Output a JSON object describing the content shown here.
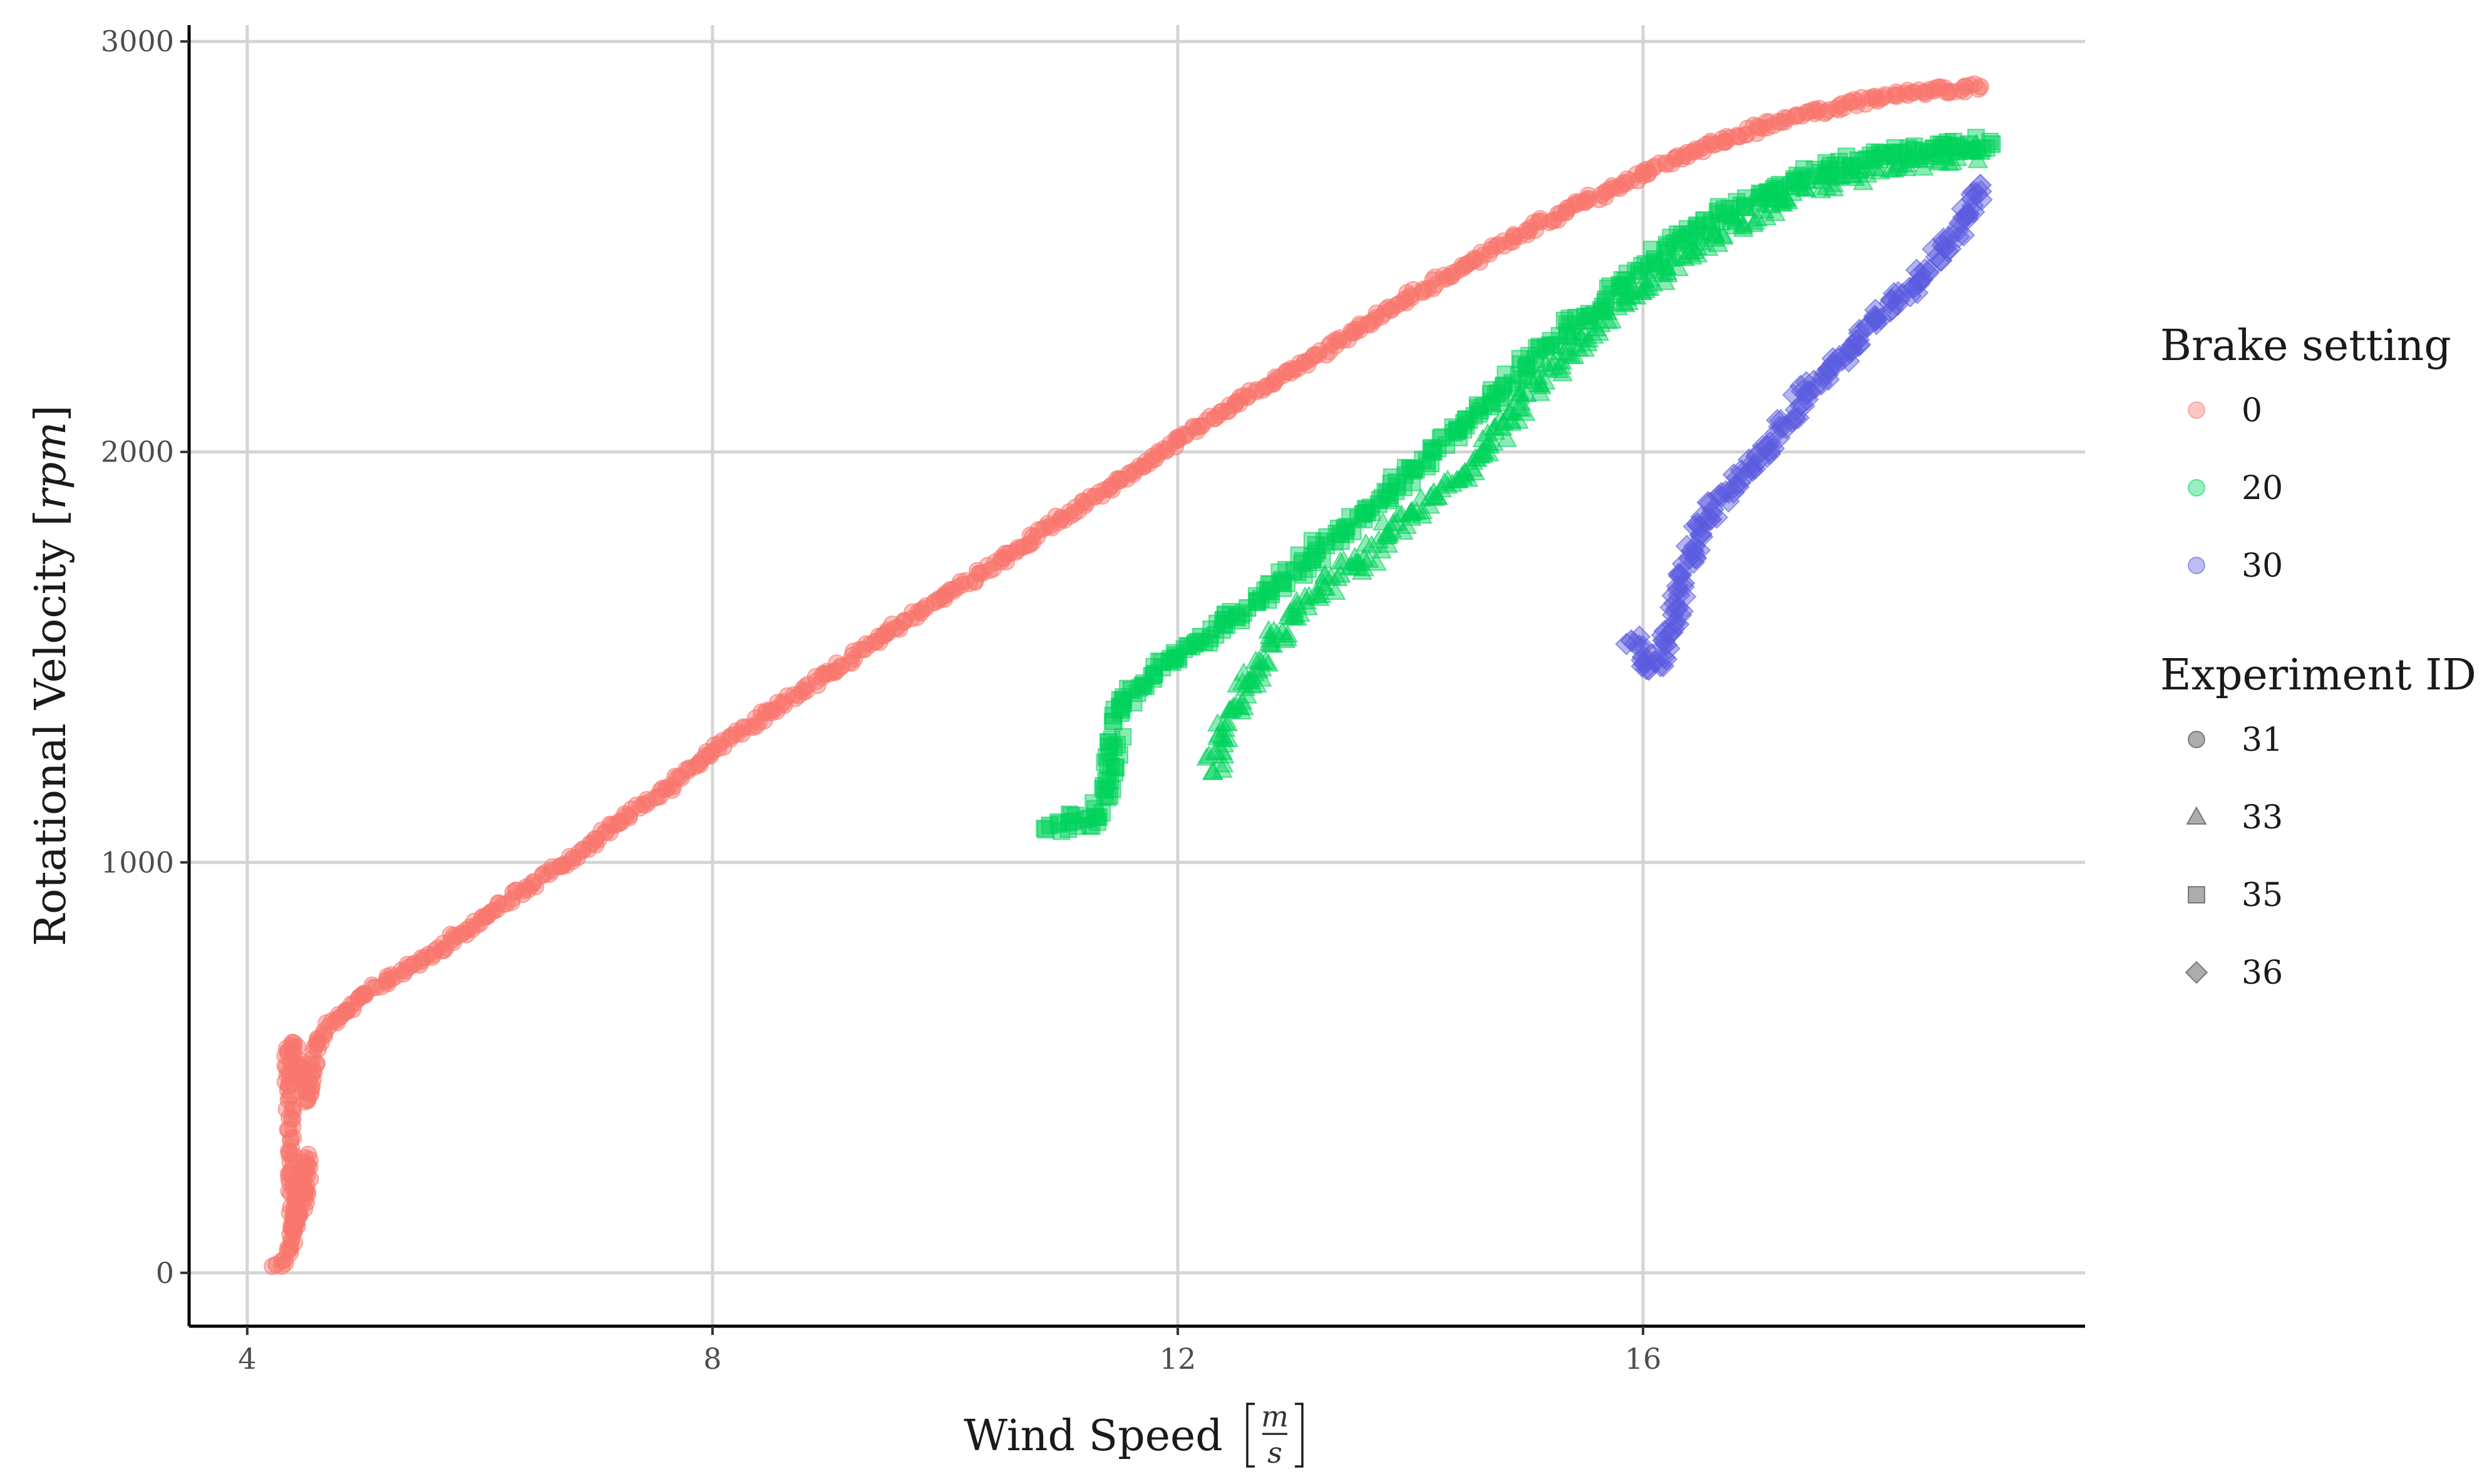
{
  "chart_data": {
    "type": "scatter",
    "title": "",
    "xlabel": "Wind Speed",
    "xlabel_unit": {
      "numerator": "m",
      "denominator": "s"
    },
    "ylabel": "Rotational Velocity",
    "ylabel_unit": "rpm",
    "xlim": [
      3.5,
      19.8
    ],
    "ylim": [
      -130,
      3040
    ],
    "x_ticks": [
      4,
      8,
      12,
      16
    ],
    "y_ticks": [
      0,
      1000,
      2000,
      3000
    ],
    "grid": true,
    "legend_position": "right",
    "colors": {
      "0": "#F8766D",
      "20": "#00D35C",
      "30": "#5B5BE0"
    },
    "legends": [
      {
        "title": "Brake setting",
        "kind": "color",
        "items": [
          "0",
          "20",
          "30"
        ]
      },
      {
        "title": "Experiment ID",
        "kind": "shape",
        "items": [
          "31",
          "33",
          "35",
          "36"
        ],
        "shapes": [
          "circle",
          "triangle",
          "square",
          "diamond"
        ]
      }
    ],
    "series": [
      {
        "brake": "0",
        "experiment": "31",
        "shape": "circle",
        "jitter": 12,
        "x": [
          4.25,
          4.3,
          4.35,
          4.4,
          4.42,
          4.45,
          4.48,
          4.5,
          4.52,
          4.5,
          4.45,
          4.4,
          4.35,
          4.4,
          4.45,
          4.5,
          4.52,
          4.55,
          4.6,
          4.7,
          4.85,
          5.0,
          5.2,
          5.5,
          5.8,
          6.1,
          6.4,
          6.8,
          7.2,
          7.6,
          8.0,
          8.5,
          9.0,
          9.5,
          10.0,
          10.5,
          11.0,
          11.5,
          12.0,
          12.5,
          13.0,
          13.5,
          14.0,
          14.5,
          15.0,
          15.5,
          16.0,
          16.5,
          17.0,
          17.5,
          18.0,
          18.5,
          18.9
        ],
        "y": [
          20,
          30,
          60,
          100,
          150,
          200,
          250,
          280,
          260,
          200,
          140,
          100,
          540,
          560,
          500,
          450,
          420,
          480,
          560,
          600,
          640,
          680,
          710,
          760,
          820,
          880,
          940,
          1010,
          1100,
          1180,
          1270,
          1370,
          1460,
          1560,
          1650,
          1740,
          1840,
          1930,
          2030,
          2120,
          2200,
          2290,
          2380,
          2460,
          2540,
          2610,
          2680,
          2740,
          2790,
          2830,
          2860,
          2880,
          2890
        ]
      },
      {
        "brake": "20",
        "experiment": "35",
        "shape": "square",
        "jitter": 26,
        "x": [
          10.9,
          11.1,
          11.3,
          11.4,
          11.45,
          11.5,
          11.6,
          11.8,
          12.0,
          12.2,
          12.4,
          12.6,
          12.8,
          13.0,
          13.2,
          13.4,
          13.6,
          13.8,
          14.0,
          14.2,
          14.4,
          14.6,
          14.8,
          15.0,
          15.2,
          15.5,
          15.8,
          16.1,
          16.4,
          16.7,
          17.0,
          17.3,
          17.6,
          17.9,
          18.2,
          18.5,
          18.8,
          19.0
        ],
        "y": [
          1090,
          1100,
          1110,
          1200,
          1280,
          1380,
          1420,
          1460,
          1500,
          1550,
          1580,
          1620,
          1660,
          1710,
          1760,
          1800,
          1850,
          1900,
          1960,
          2000,
          2050,
          2100,
          2160,
          2210,
          2260,
          2330,
          2400,
          2470,
          2530,
          2580,
          2620,
          2660,
          2690,
          2710,
          2730,
          2740,
          2750,
          2750
        ]
      },
      {
        "brake": "20",
        "experiment": "33",
        "shape": "triangle",
        "jitter": 30,
        "x": [
          12.3,
          12.4,
          12.5,
          12.6,
          12.7,
          12.8,
          12.9,
          13.0,
          13.2,
          13.4,
          13.6,
          13.8,
          14.0,
          14.2,
          14.4,
          14.6,
          14.8,
          15.0,
          15.3,
          15.6,
          15.9,
          16.2,
          16.5,
          16.8,
          17.1,
          17.4,
          17.7,
          18.0,
          18.3,
          18.6,
          18.9
        ],
        "y": [
          1220,
          1300,
          1380,
          1440,
          1490,
          1530,
          1560,
          1600,
          1650,
          1700,
          1740,
          1800,
          1850,
          1900,
          1930,
          1990,
          2070,
          2140,
          2220,
          2300,
          2380,
          2450,
          2510,
          2560,
          2600,
          2640,
          2670,
          2690,
          2710,
          2720,
          2730
        ]
      },
      {
        "brake": "30",
        "experiment": "36",
        "shape": "diamond",
        "jitter": 24,
        "x": [
          15.9,
          16.0,
          16.05,
          16.1,
          16.2,
          16.25,
          16.3,
          16.35,
          16.4,
          16.5,
          16.6,
          16.8,
          17.0,
          17.2,
          17.4,
          17.6,
          17.8,
          18.0,
          18.2,
          18.4,
          18.6,
          18.8,
          18.9
        ],
        "y": [
          1540,
          1500,
          1470,
          1490,
          1530,
          1560,
          1620,
          1680,
          1740,
          1800,
          1860,
          1920,
          1980,
          2060,
          2140,
          2200,
          2260,
          2320,
          2370,
          2420,
          2500,
          2580,
          2650
        ]
      }
    ]
  }
}
